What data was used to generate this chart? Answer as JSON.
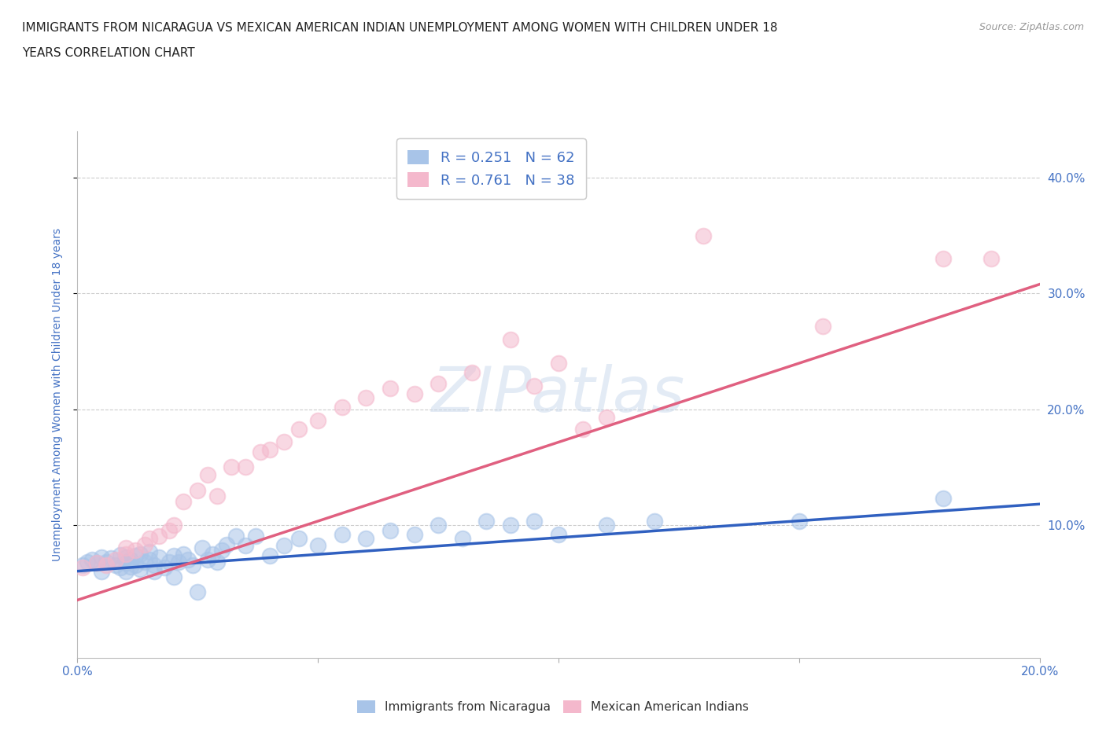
{
  "title_line1": "IMMIGRANTS FROM NICARAGUA VS MEXICAN AMERICAN INDIAN UNEMPLOYMENT AMONG WOMEN WITH CHILDREN UNDER 18",
  "title_line2": "YEARS CORRELATION CHART",
  "source_text": "Source: ZipAtlas.com",
  "ylabel": "Unemployment Among Women with Children Under 18 years",
  "xlim": [
    0.0,
    0.2
  ],
  "ylim": [
    -0.015,
    0.44
  ],
  "xticks": [
    0.0,
    0.05,
    0.1,
    0.15,
    0.2
  ],
  "yticks": [
    0.1,
    0.2,
    0.3,
    0.4
  ],
  "ytick_labels": [
    "10.0%",
    "20.0%",
    "30.0%",
    "40.0%"
  ],
  "xtick_labels": [
    "0.0%",
    "",
    "",
    "",
    "20.0%"
  ],
  "blue_color": "#a8c4e8",
  "pink_color": "#f4b8cc",
  "blue_line_color": "#3060c0",
  "pink_line_color": "#e06080",
  "R_blue": 0.251,
  "N_blue": 62,
  "R_pink": 0.761,
  "N_pink": 38,
  "legend_label_blue": "Immigrants from Nicaragua",
  "legend_label_pink": "Mexican American Indians",
  "watermark": "ZIPatlas",
  "title_fontsize": 11,
  "axis_label_color": "#4472c4",
  "tick_label_color": "#4472c4",
  "blue_scatter_x": [
    0.001,
    0.002,
    0.003,
    0.004,
    0.005,
    0.005,
    0.006,
    0.007,
    0.008,
    0.009,
    0.009,
    0.01,
    0.01,
    0.01,
    0.011,
    0.011,
    0.012,
    0.012,
    0.013,
    0.013,
    0.014,
    0.015,
    0.015,
    0.016,
    0.016,
    0.017,
    0.018,
    0.019,
    0.02,
    0.02,
    0.021,
    0.022,
    0.023,
    0.024,
    0.025,
    0.026,
    0.027,
    0.028,
    0.029,
    0.03,
    0.031,
    0.033,
    0.035,
    0.037,
    0.04,
    0.043,
    0.046,
    0.05,
    0.055,
    0.06,
    0.065,
    0.07,
    0.075,
    0.08,
    0.085,
    0.09,
    0.095,
    0.1,
    0.11,
    0.12,
    0.15,
    0.18
  ],
  "blue_scatter_y": [
    0.065,
    0.068,
    0.07,
    0.067,
    0.072,
    0.06,
    0.068,
    0.071,
    0.065,
    0.063,
    0.074,
    0.06,
    0.067,
    0.072,
    0.064,
    0.07,
    0.065,
    0.073,
    0.062,
    0.075,
    0.068,
    0.07,
    0.077,
    0.065,
    0.06,
    0.072,
    0.063,
    0.068,
    0.055,
    0.073,
    0.068,
    0.075,
    0.07,
    0.065,
    0.042,
    0.08,
    0.07,
    0.075,
    0.068,
    0.078,
    0.083,
    0.09,
    0.082,
    0.09,
    0.073,
    0.082,
    0.088,
    0.082,
    0.092,
    0.088,
    0.095,
    0.092,
    0.1,
    0.088,
    0.103,
    0.1,
    0.103,
    0.092,
    0.1,
    0.103,
    0.103,
    0.123
  ],
  "pink_scatter_x": [
    0.001,
    0.004,
    0.006,
    0.008,
    0.01,
    0.01,
    0.012,
    0.014,
    0.015,
    0.017,
    0.019,
    0.02,
    0.022,
    0.025,
    0.027,
    0.029,
    0.032,
    0.035,
    0.038,
    0.04,
    0.043,
    0.046,
    0.05,
    0.055,
    0.06,
    0.065,
    0.07,
    0.075,
    0.082,
    0.09,
    0.095,
    0.1,
    0.105,
    0.11,
    0.13,
    0.155,
    0.18,
    0.19
  ],
  "pink_scatter_y": [
    0.063,
    0.067,
    0.065,
    0.07,
    0.075,
    0.08,
    0.078,
    0.083,
    0.088,
    0.09,
    0.095,
    0.1,
    0.12,
    0.13,
    0.143,
    0.125,
    0.15,
    0.15,
    0.163,
    0.165,
    0.172,
    0.183,
    0.19,
    0.202,
    0.21,
    0.218,
    0.213,
    0.222,
    0.232,
    0.26,
    0.22,
    0.24,
    0.183,
    0.193,
    0.35,
    0.272,
    0.33,
    0.33
  ],
  "blue_trend_x": [
    0.0,
    0.2
  ],
  "blue_trend_y": [
    0.06,
    0.118
  ],
  "pink_trend_x": [
    0.0,
    0.2
  ],
  "pink_trend_y": [
    0.035,
    0.308
  ],
  "grid_color": "#cccccc",
  "background_color": "#ffffff"
}
